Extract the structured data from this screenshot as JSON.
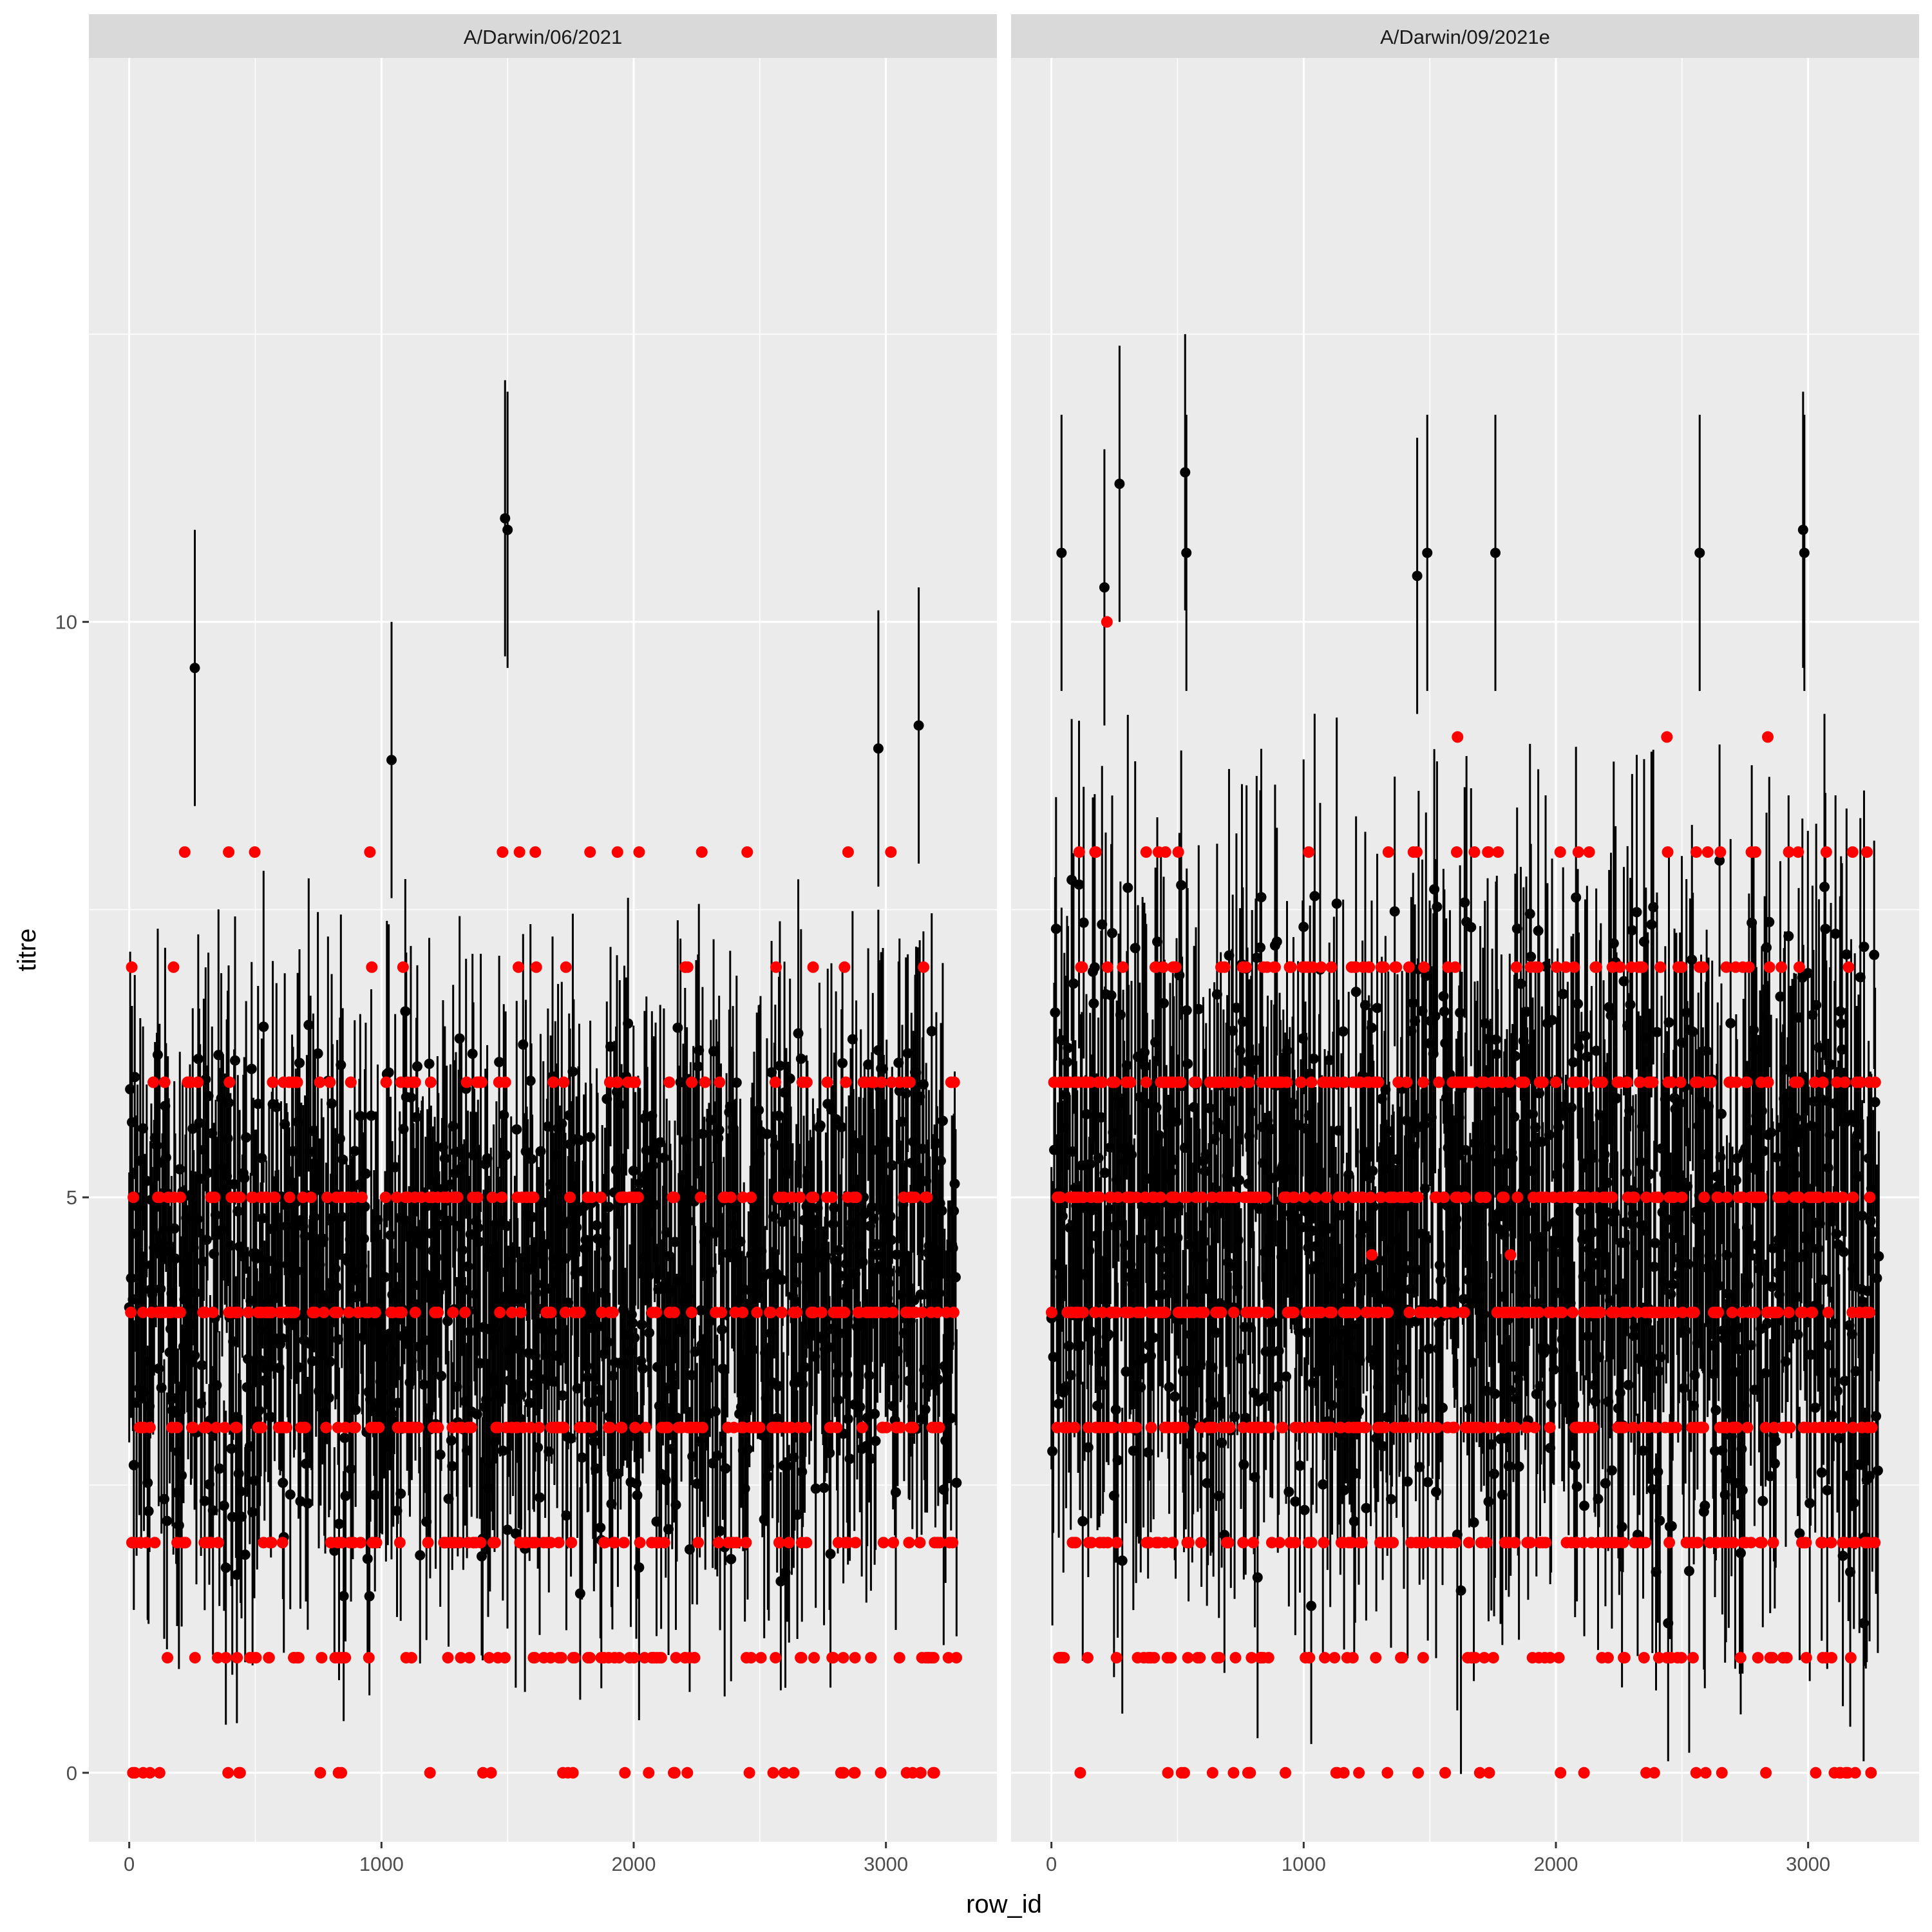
{
  "chart_data": {
    "type": "scatter",
    "title": "",
    "xlabel": "row_id",
    "ylabel": "titre",
    "xlim": [
      -160,
      3440
    ],
    "ylim": [
      -0.6,
      14.9
    ],
    "x_ticks": [
      0,
      1000,
      2000,
      3000
    ],
    "x_tick_labels": [
      "0",
      "1000",
      "2000",
      "3000"
    ],
    "y_ticks": [
      0,
      5,
      10
    ],
    "y_tick_labels": [
      "0",
      "5",
      "10"
    ],
    "y_minor_ticks": [
      2.5,
      7.5,
      12.5
    ],
    "x_minor_ticks": [
      500,
      1500,
      2500
    ],
    "grid": true,
    "legend": "none",
    "colors": {
      "panel_background": "#ebebeb",
      "strip_background": "#d9d9d9",
      "grid": "#ffffff",
      "estimate_points": "#000000",
      "observed_points": "#ff0000"
    },
    "series_description_point_colors": [
      "black",
      "red"
    ],
    "panels": [
      {
        "strip": "A/Darwin/06/2021",
        "x_range": [
          0,
          3280
        ],
        "observed_levels": [
          0,
          1,
          2,
          3,
          4,
          5,
          6,
          7,
          8
        ],
        "observed_level_counts": [
          40,
          80,
          90,
          120,
          120,
          90,
          55,
          14,
          8
        ],
        "estimate_center_range": [
          1.5,
          6.8
        ],
        "errorbar_halfwidth": 1.1,
        "highlights": [
          {
            "x": 260,
            "y": 9.6
          },
          {
            "x": 1490,
            "y": 10.9
          },
          {
            "x": 1500,
            "y": 10.8
          },
          {
            "x": 1040,
            "y": 8.8
          },
          {
            "x": 2970,
            "y": 8.9
          },
          {
            "x": 3130,
            "y": 9.1
          }
        ],
        "red_extras": [
          {
            "x": 220,
            "y": 8
          },
          {
            "x": 1480,
            "y": 8
          },
          {
            "x": 1610,
            "y": 8
          },
          {
            "x": 2270,
            "y": 8
          },
          {
            "x": 2450,
            "y": 8
          },
          {
            "x": 2850,
            "y": 8
          }
        ]
      },
      {
        "strip": "A/Darwin/09/2021e",
        "x_range": [
          0,
          3280
        ],
        "observed_levels": [
          0,
          1,
          2,
          3,
          4,
          5,
          6,
          7,
          8
        ],
        "observed_level_counts": [
          35,
          70,
          120,
          160,
          160,
          160,
          140,
          70,
          30
        ],
        "estimate_center_range": [
          1.5,
          8.0
        ],
        "errorbar_halfwidth": 1.3,
        "highlights": [
          {
            "x": 530,
            "y": 11.3
          },
          {
            "x": 535,
            "y": 10.6
          },
          {
            "x": 270,
            "y": 11.2
          },
          {
            "x": 1450,
            "y": 10.4
          },
          {
            "x": 1490,
            "y": 10.6
          },
          {
            "x": 1760,
            "y": 10.6
          },
          {
            "x": 2570,
            "y": 10.6
          },
          {
            "x": 2980,
            "y": 10.8
          },
          {
            "x": 2985,
            "y": 10.6
          },
          {
            "x": 40,
            "y": 10.6
          },
          {
            "x": 210,
            "y": 10.3
          },
          {
            "x": 2445,
            "y": 1.3
          },
          {
            "x": 3220,
            "y": 1.3
          },
          {
            "x": 1030,
            "y": 1.45
          }
        ],
        "red_extras": [
          {
            "x": 220,
            "y": 10
          },
          {
            "x": 1610,
            "y": 9
          },
          {
            "x": 2440,
            "y": 9
          },
          {
            "x": 2840,
            "y": 9
          },
          {
            "x": 1270,
            "y": 4.5
          },
          {
            "x": 1820,
            "y": 4.5
          }
        ]
      }
    ]
  }
}
